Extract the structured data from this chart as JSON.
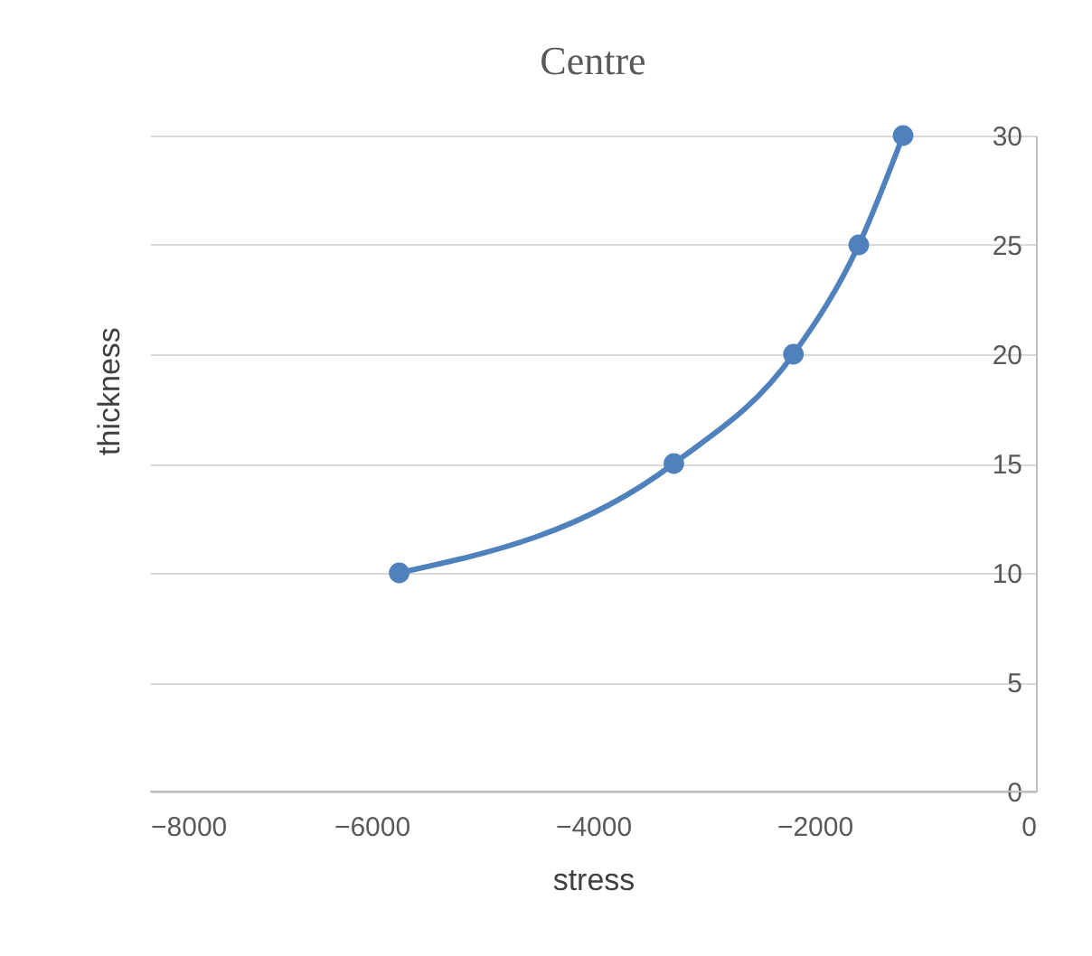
{
  "chart_data": {
    "type": "line",
    "title": "Centre",
    "xlabel": "stress",
    "ylabel": "thickness",
    "x": [
      -5750,
      -3270,
      -2190,
      -1600,
      -1200
    ],
    "series": [
      {
        "color": "#4f81bd",
        "values": [
          10,
          15,
          20,
          25,
          30
        ]
      }
    ],
    "xlim": [
      -8000,
      0
    ],
    "xticks": [
      -8000,
      -6000,
      -4000,
      -2000,
      0
    ],
    "ylim": [
      0,
      30
    ],
    "yticks": [
      0,
      5,
      10,
      15,
      20,
      25,
      30
    ],
    "grid": "y",
    "marker": "circle",
    "line_style": "solid"
  }
}
